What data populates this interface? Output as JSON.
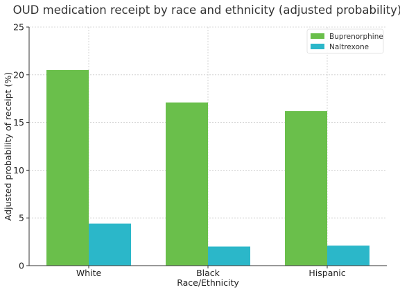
{
  "chart_data": {
    "type": "bar",
    "title": "OUD medication receipt by race and ethnicity (adjusted probability)",
    "xlabel": "Race/Ethnicity",
    "ylabel": "Adjusted probability of receipt (%)",
    "categories": [
      "White",
      "Black",
      "Hispanic"
    ],
    "series": [
      {
        "name": "Buprenorphine",
        "values": [
          20.5,
          17.1,
          16.2
        ],
        "color": "#6abf4b"
      },
      {
        "name": "Naltrexone",
        "values": [
          4.4,
          2.0,
          2.1
        ],
        "color": "#2bb7c9"
      }
    ],
    "ylim": [
      0,
      25
    ],
    "yticks": [
      0,
      5,
      10,
      15,
      20,
      25
    ],
    "grid": true,
    "legend_position": "top-right"
  }
}
